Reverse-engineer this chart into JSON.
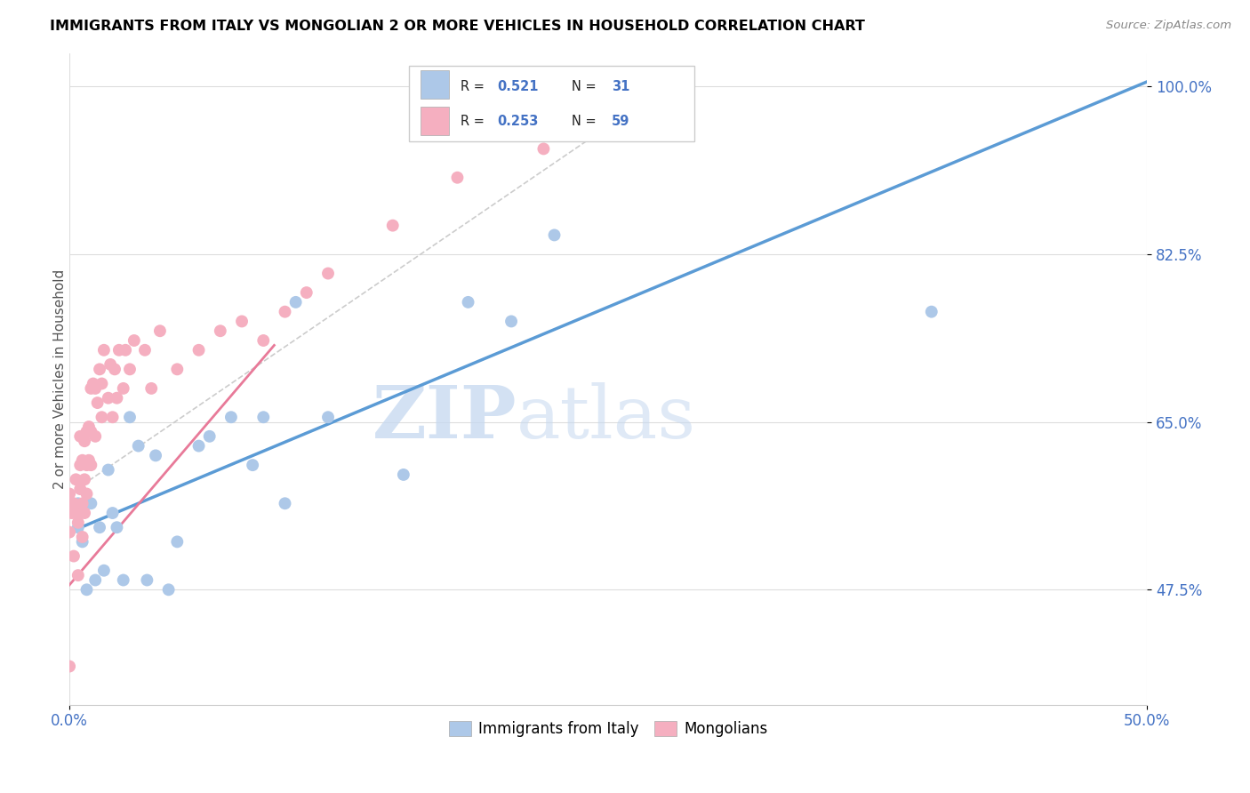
{
  "title": "IMMIGRANTS FROM ITALY VS MONGOLIAN 2 OR MORE VEHICLES IN HOUSEHOLD CORRELATION CHART",
  "source": "Source: ZipAtlas.com",
  "ylabel": "2 or more Vehicles in Household",
  "x_min": 0.0,
  "x_max": 0.5,
  "y_min": 0.355,
  "y_max": 1.035,
  "y_ticks": [
    0.475,
    0.65,
    0.825,
    1.0
  ],
  "y_tick_labels": [
    "47.5%",
    "65.0%",
    "82.5%",
    "100.0%"
  ],
  "x_ticks": [
    0.0,
    0.5
  ],
  "x_tick_labels": [
    "0.0%",
    "50.0%"
  ],
  "legend_labels": [
    "Immigrants from Italy",
    "Mongolians"
  ],
  "R_italy": 0.521,
  "N_italy": 31,
  "R_mongolian": 0.253,
  "N_mongolian": 59,
  "color_italy": "#adc8e8",
  "color_mongolian": "#f5afc0",
  "trendline_color_italy": "#5b9bd5",
  "trendline_color_mongolian": "#e87a99",
  "diagonal_color": "#cccccc",
  "watermark_zip": "ZIP",
  "watermark_atlas": "atlas",
  "italy_x": [
    0.004,
    0.004,
    0.006,
    0.008,
    0.01,
    0.012,
    0.014,
    0.016,
    0.018,
    0.02,
    0.022,
    0.025,
    0.028,
    0.032,
    0.036,
    0.04,
    0.046,
    0.05,
    0.06,
    0.065,
    0.075,
    0.085,
    0.09,
    0.1,
    0.105,
    0.12,
    0.155,
    0.185,
    0.205,
    0.225,
    0.4
  ],
  "italy_y": [
    0.565,
    0.54,
    0.525,
    0.475,
    0.565,
    0.485,
    0.54,
    0.495,
    0.6,
    0.555,
    0.54,
    0.485,
    0.655,
    0.625,
    0.485,
    0.615,
    0.475,
    0.525,
    0.625,
    0.635,
    0.655,
    0.605,
    0.655,
    0.565,
    0.775,
    0.655,
    0.595,
    0.775,
    0.755,
    0.845,
    0.765
  ],
  "mongolian_x": [
    0.0,
    0.0,
    0.001,
    0.002,
    0.002,
    0.003,
    0.003,
    0.004,
    0.004,
    0.005,
    0.005,
    0.005,
    0.006,
    0.006,
    0.006,
    0.007,
    0.007,
    0.007,
    0.008,
    0.008,
    0.008,
    0.009,
    0.009,
    0.01,
    0.01,
    0.01,
    0.011,
    0.012,
    0.012,
    0.013,
    0.014,
    0.015,
    0.015,
    0.016,
    0.018,
    0.019,
    0.02,
    0.021,
    0.022,
    0.023,
    0.025,
    0.026,
    0.028,
    0.03,
    0.035,
    0.038,
    0.042,
    0.05,
    0.06,
    0.07,
    0.08,
    0.09,
    0.1,
    0.11,
    0.12,
    0.15,
    0.18,
    0.22,
    0.0
  ],
  "mongolian_y": [
    0.535,
    0.575,
    0.555,
    0.51,
    0.565,
    0.555,
    0.59,
    0.49,
    0.545,
    0.58,
    0.605,
    0.635,
    0.53,
    0.565,
    0.61,
    0.555,
    0.59,
    0.63,
    0.575,
    0.605,
    0.64,
    0.61,
    0.645,
    0.605,
    0.64,
    0.685,
    0.69,
    0.635,
    0.685,
    0.67,
    0.705,
    0.655,
    0.69,
    0.725,
    0.675,
    0.71,
    0.655,
    0.705,
    0.675,
    0.725,
    0.685,
    0.725,
    0.705,
    0.735,
    0.725,
    0.685,
    0.745,
    0.705,
    0.725,
    0.745,
    0.755,
    0.735,
    0.765,
    0.785,
    0.805,
    0.855,
    0.905,
    0.935,
    0.395
  ],
  "italy_trend_x": [
    0.0,
    0.5
  ],
  "italy_trend_y": [
    0.535,
    1.005
  ],
  "mongolian_trend_x": [
    0.0,
    0.095
  ],
  "mongolian_trend_y": [
    0.48,
    0.73
  ]
}
